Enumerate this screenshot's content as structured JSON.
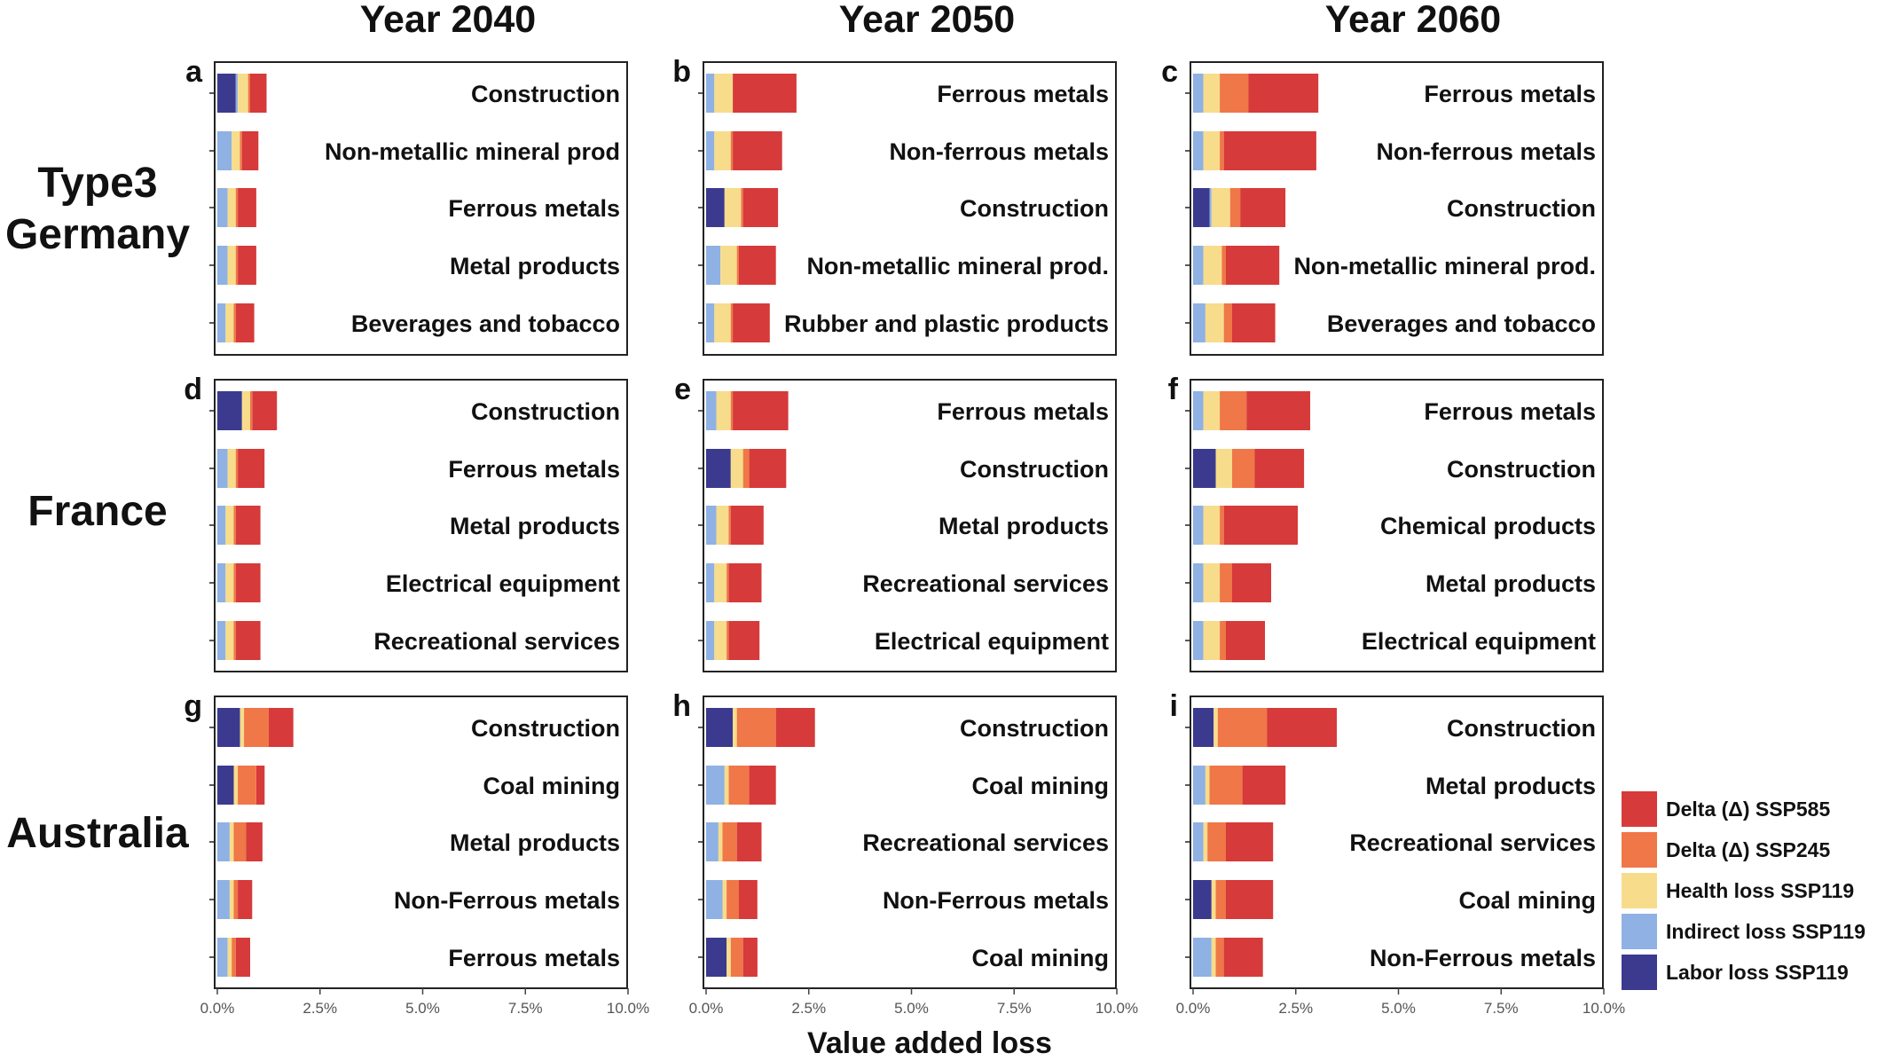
{
  "chart_data": {
    "type": "bar",
    "orientation": "horizontal",
    "stacked": true,
    "xlabel": "Value added loss",
    "xlim": [
      0,
      10
    ],
    "x_ticks": [
      "0.0%",
      "2.5%",
      "5.0%",
      "7.5%",
      "10.0%"
    ],
    "column_titles": [
      "Year 2040",
      "Year 2050",
      "Year 2060"
    ],
    "row_labels": [
      [
        "Type3",
        "Germany"
      ],
      [
        "France"
      ],
      [
        "Australia"
      ]
    ],
    "series": [
      {
        "key": "labor",
        "name": "Labor loss SSP119",
        "color": "#3b3a8f"
      },
      {
        "key": "indirect",
        "name": "Indirect loss SSP119",
        "color": "#8fb1e3"
      },
      {
        "key": "health",
        "name": "Health loss SSP119",
        "color": "#f7dc8c"
      },
      {
        "key": "d245",
        "name": "Delta (Δ) SSP245",
        "color": "#ef7748"
      },
      {
        "key": "d585",
        "name": "Delta (Δ) SSP585",
        "color": "#d63a3a"
      }
    ],
    "legend_order": [
      "d585",
      "d245",
      "health",
      "indirect",
      "labor"
    ],
    "panels": [
      {
        "letter": "a",
        "row": 0,
        "col": 0,
        "bars": [
          {
            "sector": "Construction",
            "values": [
              0.45,
              0.05,
              0.25,
              0.05,
              0.4
            ]
          },
          {
            "sector": "Non-metallic mineral prod",
            "values": [
              0.0,
              0.35,
              0.2,
              0.05,
              0.4
            ]
          },
          {
            "sector": "Ferrous metals",
            "values": [
              0.0,
              0.25,
              0.2,
              0.05,
              0.45
            ]
          },
          {
            "sector": "Metal products",
            "values": [
              0.0,
              0.25,
              0.2,
              0.05,
              0.45
            ]
          },
          {
            "sector": "Beverages and tobacco",
            "values": [
              0.0,
              0.2,
              0.2,
              0.05,
              0.45
            ]
          }
        ]
      },
      {
        "letter": "b",
        "row": 0,
        "col": 1,
        "bars": [
          {
            "sector": "Ferrous metals",
            "values": [
              0.0,
              0.2,
              0.45,
              0.0,
              1.55
            ]
          },
          {
            "sector": "Non-ferrous metals",
            "values": [
              0.0,
              0.2,
              0.4,
              0.05,
              1.2
            ]
          },
          {
            "sector": "Construction",
            "values": [
              0.45,
              0.0,
              0.4,
              0.05,
              0.85
            ]
          },
          {
            "sector": "Non-metallic mineral prod.",
            "values": [
              0.0,
              0.35,
              0.4,
              0.05,
              0.9
            ]
          },
          {
            "sector": "Rubber and plastic products",
            "values": [
              0.0,
              0.2,
              0.4,
              0.05,
              0.9
            ]
          }
        ]
      },
      {
        "letter": "c",
        "row": 0,
        "col": 2,
        "bars": [
          {
            "sector": "Ferrous metals",
            "values": [
              0.0,
              0.25,
              0.4,
              0.7,
              1.7
            ]
          },
          {
            "sector": "Non-ferrous metals",
            "values": [
              0.0,
              0.25,
              0.4,
              0.1,
              2.25
            ]
          },
          {
            "sector": "Construction",
            "values": [
              0.4,
              0.05,
              0.45,
              0.25,
              1.1
            ]
          },
          {
            "sector": "Non-metallic mineral prod.",
            "values": [
              0.0,
              0.25,
              0.45,
              0.1,
              1.3
            ]
          },
          {
            "sector": "Beverages and tobacco",
            "values": [
              0.0,
              0.3,
              0.45,
              0.2,
              1.05
            ]
          }
        ]
      },
      {
        "letter": "d",
        "row": 1,
        "col": 0,
        "bars": [
          {
            "sector": "Construction",
            "values": [
              0.6,
              0.0,
              0.2,
              0.05,
              0.6
            ]
          },
          {
            "sector": "Ferrous metals",
            "values": [
              0.0,
              0.25,
              0.2,
              0.05,
              0.65
            ]
          },
          {
            "sector": "Metal products",
            "values": [
              0.0,
              0.2,
              0.2,
              0.05,
              0.6
            ]
          },
          {
            "sector": "Electrical equipment",
            "values": [
              0.0,
              0.2,
              0.2,
              0.05,
              0.6
            ]
          },
          {
            "sector": "Recreational services",
            "values": [
              0.0,
              0.2,
              0.2,
              0.05,
              0.6
            ]
          }
        ]
      },
      {
        "letter": "e",
        "row": 1,
        "col": 1,
        "bars": [
          {
            "sector": "Ferrous metals",
            "values": [
              0.0,
              0.25,
              0.35,
              0.05,
              1.35
            ]
          },
          {
            "sector": "Construction",
            "values": [
              0.6,
              0.0,
              0.3,
              0.15,
              0.9
            ]
          },
          {
            "sector": "Metal products",
            "values": [
              0.0,
              0.25,
              0.3,
              0.05,
              0.8
            ]
          },
          {
            "sector": "Recreational services",
            "values": [
              0.0,
              0.2,
              0.3,
              0.05,
              0.8
            ]
          },
          {
            "sector": "Electrical equipment",
            "values": [
              0.0,
              0.2,
              0.3,
              0.05,
              0.75
            ]
          }
        ]
      },
      {
        "letter": "f",
        "row": 1,
        "col": 2,
        "bars": [
          {
            "sector": "Ferrous metals",
            "values": [
              0.0,
              0.25,
              0.4,
              0.65,
              1.55
            ]
          },
          {
            "sector": "Construction",
            "values": [
              0.55,
              0.0,
              0.4,
              0.55,
              1.2
            ]
          },
          {
            "sector": "Chemical products",
            "values": [
              0.0,
              0.25,
              0.4,
              0.1,
              1.8
            ]
          },
          {
            "sector": "Metal products",
            "values": [
              0.0,
              0.25,
              0.4,
              0.3,
              0.95
            ]
          },
          {
            "sector": "Electrical equipment",
            "values": [
              0.0,
              0.25,
              0.4,
              0.15,
              0.95
            ]
          }
        ]
      },
      {
        "letter": "g",
        "row": 2,
        "col": 0,
        "bars": [
          {
            "sector": "Construction",
            "values": [
              0.55,
              0.0,
              0.1,
              0.6,
              0.6
            ]
          },
          {
            "sector": "Coal mining",
            "values": [
              0.4,
              0.0,
              0.1,
              0.45,
              0.2
            ]
          },
          {
            "sector": "Metal products",
            "values": [
              0.0,
              0.3,
              0.1,
              0.3,
              0.4
            ]
          },
          {
            "sector": "Non-Ferrous metals",
            "values": [
              0.0,
              0.3,
              0.1,
              0.1,
              0.35
            ]
          },
          {
            "sector": "Ferrous metals",
            "values": [
              0.0,
              0.25,
              0.1,
              0.1,
              0.35
            ]
          }
        ]
      },
      {
        "letter": "h",
        "row": 2,
        "col": 1,
        "bars": [
          {
            "sector": "Construction",
            "values": [
              0.65,
              0.0,
              0.1,
              0.95,
              0.95
            ]
          },
          {
            "sector": "Coal mining",
            "values": [
              0.0,
              0.45,
              0.1,
              0.5,
              0.65
            ]
          },
          {
            "sector": "Recreational services",
            "values": [
              0.0,
              0.3,
              0.1,
              0.35,
              0.6
            ]
          },
          {
            "sector": "Non-Ferrous metals",
            "values": [
              0.0,
              0.4,
              0.1,
              0.3,
              0.45
            ]
          },
          {
            "sector": "Coal mining",
            "values": [
              0.5,
              0.0,
              0.1,
              0.3,
              0.35
            ]
          }
        ]
      },
      {
        "letter": "i",
        "row": 2,
        "col": 2,
        "bars": [
          {
            "sector": "Construction",
            "values": [
              0.5,
              0.0,
              0.1,
              1.2,
              1.7
            ]
          },
          {
            "sector": "Metal products",
            "values": [
              0.0,
              0.3,
              0.1,
              0.8,
              1.05
            ]
          },
          {
            "sector": "Recreational services",
            "values": [
              0.0,
              0.25,
              0.1,
              0.45,
              1.15
            ]
          },
          {
            "sector": "Coal mining",
            "values": [
              0.45,
              0.0,
              0.1,
              0.25,
              1.15
            ]
          },
          {
            "sector": "Non-Ferrous metals",
            "values": [
              0.0,
              0.45,
              0.1,
              0.2,
              0.95
            ]
          }
        ]
      }
    ]
  }
}
